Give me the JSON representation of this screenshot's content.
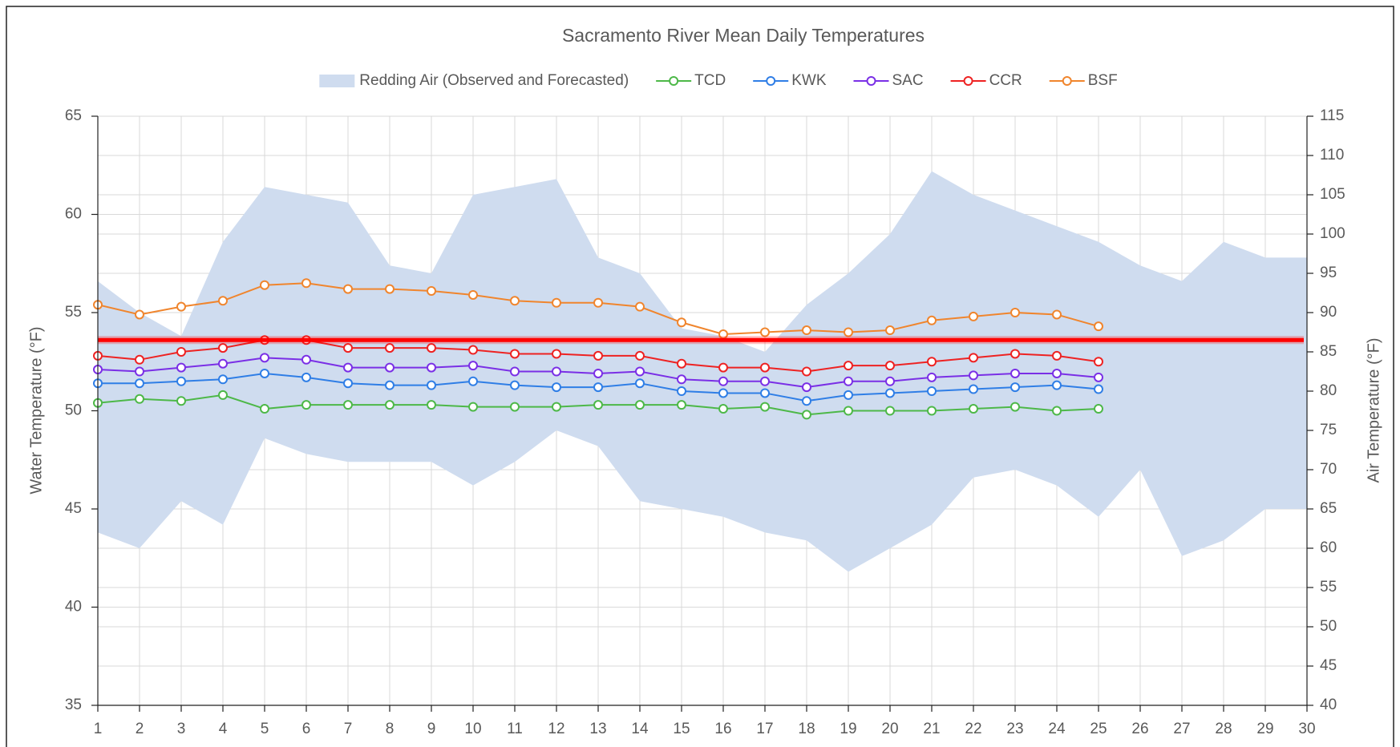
{
  "chart_data": {
    "type": "line",
    "title": "Sacramento River Mean Daily Temperatures",
    "y_label": "Water Temperature (°F)",
    "y2_label": "Air Temperature (°F)",
    "x": [
      1,
      2,
      3,
      4,
      5,
      6,
      7,
      8,
      9,
      10,
      11,
      12,
      13,
      14,
      15,
      16,
      17,
      18,
      19,
      20,
      21,
      22,
      23,
      24,
      25,
      26,
      27,
      28,
      29,
      30
    ],
    "xlim": [
      1,
      30
    ],
    "xticks": [
      1,
      2,
      3,
      4,
      5,
      6,
      7,
      8,
      9,
      10,
      11,
      12,
      13,
      14,
      15,
      16,
      17,
      18,
      19,
      20,
      21,
      22,
      23,
      24,
      25,
      26,
      27,
      28,
      29,
      30
    ],
    "ylim": [
      35,
      65
    ],
    "yticks": [
      35,
      40,
      45,
      50,
      55,
      60,
      65
    ],
    "y2lim": [
      40,
      115
    ],
    "y2ticks": [
      40,
      45,
      50,
      55,
      60,
      65,
      70,
      75,
      80,
      85,
      90,
      95,
      100,
      105,
      110,
      115
    ],
    "grid": true,
    "legend": "top",
    "series": [
      {
        "name": "Redding Air (Observed and Forecasted)",
        "kind": "band",
        "axis": "y2",
        "color": "#cfdcef",
        "high": [
          94,
          90,
          87,
          99,
          106,
          105,
          104,
          96,
          95,
          105,
          106,
          107,
          97,
          95,
          88,
          87,
          85,
          91,
          95,
          100,
          108,
          105,
          103,
          101,
          99,
          96,
          94,
          99,
          97,
          97
        ],
        "low": [
          62,
          60,
          66,
          63,
          74,
          72,
          71,
          71,
          71,
          68,
          71,
          75,
          73,
          66,
          65,
          64,
          62,
          61,
          57,
          60,
          63,
          69,
          70,
          68,
          64,
          70,
          59,
          61,
          65,
          65
        ]
      },
      {
        "name": "TCD",
        "color": "#4db848",
        "values": [
          50.4,
          50.6,
          50.5,
          50.8,
          50.1,
          50.3,
          50.3,
          50.3,
          50.3,
          50.2,
          50.2,
          50.2,
          50.3,
          50.3,
          50.3,
          50.1,
          50.2,
          49.8,
          50.0,
          50.0,
          50.0,
          50.1,
          50.2,
          50.0,
          50.1,
          null,
          null,
          null,
          null,
          null
        ]
      },
      {
        "name": "KWK",
        "color": "#2f7ee6",
        "values": [
          51.4,
          51.4,
          51.5,
          51.6,
          51.9,
          51.7,
          51.4,
          51.3,
          51.3,
          51.5,
          51.3,
          51.2,
          51.2,
          51.4,
          51.0,
          50.9,
          50.9,
          50.5,
          50.8,
          50.9,
          51.0,
          51.1,
          51.2,
          51.3,
          51.1,
          null,
          null,
          null,
          null,
          null
        ]
      },
      {
        "name": "SAC",
        "color": "#7a2fe6",
        "values": [
          52.1,
          52.0,
          52.2,
          52.4,
          52.7,
          52.6,
          52.2,
          52.2,
          52.2,
          52.3,
          52.0,
          52.0,
          51.9,
          52.0,
          51.6,
          51.5,
          51.5,
          51.2,
          51.5,
          51.5,
          51.7,
          51.8,
          51.9,
          51.9,
          51.7,
          null,
          null,
          null,
          null,
          null
        ]
      },
      {
        "name": "CCR",
        "color": "#ee2222",
        "values": [
          52.8,
          52.6,
          53.0,
          53.2,
          53.6,
          53.6,
          53.2,
          53.2,
          53.2,
          53.1,
          52.9,
          52.9,
          52.8,
          52.8,
          52.4,
          52.2,
          52.2,
          52.0,
          52.3,
          52.3,
          52.5,
          52.7,
          52.9,
          52.8,
          52.5,
          null,
          null,
          null,
          null,
          null
        ]
      },
      {
        "name": "BSF",
        "color": "#f0852d",
        "values": [
          55.4,
          54.9,
          55.3,
          55.6,
          56.4,
          56.5,
          56.2,
          56.2,
          56.1,
          55.9,
          55.6,
          55.5,
          55.5,
          55.3,
          54.5,
          53.9,
          54.0,
          54.1,
          54.0,
          54.1,
          54.6,
          54.8,
          55.0,
          54.9,
          54.3,
          null,
          null,
          null,
          null,
          null
        ]
      }
    ],
    "reference_line": {
      "value": 53.6,
      "color": "#ff0000"
    }
  }
}
